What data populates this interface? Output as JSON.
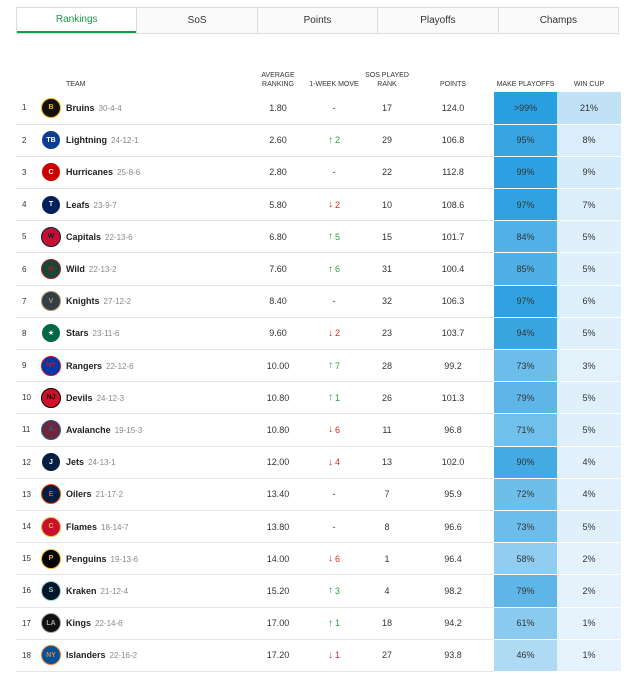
{
  "tabs": [
    {
      "label": "Rankings",
      "active": true
    },
    {
      "label": "SoS",
      "active": false
    },
    {
      "label": "Points",
      "active": false
    },
    {
      "label": "Playoffs",
      "active": false
    },
    {
      "label": "Champs",
      "active": false
    }
  ],
  "columns": {
    "team": "TEAM",
    "avg_ranking": "AVERAGE RANKING",
    "move": "1-WEEK MOVE",
    "sos": "SOS PLAYED RANK",
    "points": "POINTS",
    "playoffs": "MAKE PLAYOFFS",
    "cup": "WIN CUP"
  },
  "teams": [
    {
      "rank": "1",
      "name": "Bruins",
      "record": "30-4-4",
      "avg": "1.80",
      "move": "-",
      "dir": "none",
      "sos": "17",
      "points": "124.0",
      "playoffs": ">99%",
      "cup": "21%",
      "playoffs_pct": 99.5,
      "cup_pct": 21,
      "logo_color": "#111111",
      "logo_accent": "#f5b700",
      "abbr": "B"
    },
    {
      "rank": "2",
      "name": "Lightning",
      "record": "24-12-1",
      "avg": "2.60",
      "move": "2",
      "dir": "up",
      "sos": "29",
      "points": "106.8",
      "playoffs": "95%",
      "cup": "8%",
      "playoffs_pct": 95,
      "cup_pct": 8,
      "logo_color": "#0b3d91",
      "logo_accent": "#ffffff",
      "abbr": "TB"
    },
    {
      "rank": "3",
      "name": "Hurricanes",
      "record": "25-8-6",
      "avg": "2.80",
      "move": "-",
      "dir": "none",
      "sos": "22",
      "points": "112.8",
      "playoffs": "99%",
      "cup": "9%",
      "playoffs_pct": 99,
      "cup_pct": 9,
      "logo_color": "#cc0000",
      "logo_accent": "#ffffff",
      "abbr": "C"
    },
    {
      "rank": "4",
      "name": "Leafs",
      "record": "23-9-7",
      "avg": "5.80",
      "move": "2",
      "dir": "down",
      "sos": "10",
      "points": "108.6",
      "playoffs": "97%",
      "cup": "7%",
      "playoffs_pct": 97,
      "cup_pct": 7,
      "logo_color": "#00205b",
      "logo_accent": "#ffffff",
      "abbr": "T"
    },
    {
      "rank": "5",
      "name": "Capitals",
      "record": "22-13-6",
      "avg": "6.80",
      "move": "5",
      "dir": "up",
      "sos": "15",
      "points": "101.7",
      "playoffs": "84%",
      "cup": "5%",
      "playoffs_pct": 84,
      "cup_pct": 5,
      "logo_color": "#c8102e",
      "logo_accent": "#041e42",
      "abbr": "W"
    },
    {
      "rank": "6",
      "name": "Wild",
      "record": "22-13-2",
      "avg": "7.60",
      "move": "6",
      "dir": "up",
      "sos": "31",
      "points": "100.4",
      "playoffs": "85%",
      "cup": "5%",
      "playoffs_pct": 85,
      "cup_pct": 5,
      "logo_color": "#154734",
      "logo_accent": "#a6192e",
      "abbr": "M"
    },
    {
      "rank": "7",
      "name": "Knights",
      "record": "27-12-2",
      "avg": "8.40",
      "move": "-",
      "dir": "none",
      "sos": "32",
      "points": "106.3",
      "playoffs": "97%",
      "cup": "6%",
      "playoffs_pct": 97,
      "cup_pct": 6,
      "logo_color": "#333f48",
      "logo_accent": "#b4975a",
      "abbr": "V"
    },
    {
      "rank": "8",
      "name": "Stars",
      "record": "23-11-6",
      "avg": "9.60",
      "move": "2",
      "dir": "down",
      "sos": "23",
      "points": "103.7",
      "playoffs": "94%",
      "cup": "5%",
      "playoffs_pct": 94,
      "cup_pct": 5,
      "logo_color": "#006847",
      "logo_accent": "#ffffff",
      "abbr": "★"
    },
    {
      "rank": "9",
      "name": "Rangers",
      "record": "22-12-6",
      "avg": "10.00",
      "move": "7",
      "dir": "up",
      "sos": "28",
      "points": "99.2",
      "playoffs": "73%",
      "cup": "3%",
      "playoffs_pct": 73,
      "cup_pct": 3,
      "logo_color": "#0038a8",
      "logo_accent": "#ce1126",
      "abbr": "NY"
    },
    {
      "rank": "10",
      "name": "Devils",
      "record": "24-12-3",
      "avg": "10.80",
      "move": "1",
      "dir": "up",
      "sos": "26",
      "points": "101.3",
      "playoffs": "79%",
      "cup": "5%",
      "playoffs_pct": 79,
      "cup_pct": 5,
      "logo_color": "#ce1126",
      "logo_accent": "#000000",
      "abbr": "NJ"
    },
    {
      "rank": "11",
      "name": "Avalanche",
      "record": "19-15-3",
      "avg": "10.80",
      "move": "6",
      "dir": "down",
      "sos": "11",
      "points": "96.8",
      "playoffs": "71%",
      "cup": "5%",
      "playoffs_pct": 71,
      "cup_pct": 5,
      "logo_color": "#6f263d",
      "logo_accent": "#236192",
      "abbr": "A"
    },
    {
      "rank": "12",
      "name": "Jets",
      "record": "24-13-1",
      "avg": "12.00",
      "move": "4",
      "dir": "down",
      "sos": "13",
      "points": "102.0",
      "playoffs": "90%",
      "cup": "4%",
      "playoffs_pct": 90,
      "cup_pct": 4,
      "logo_color": "#041e42",
      "logo_accent": "#ffffff",
      "abbr": "J"
    },
    {
      "rank": "13",
      "name": "Oilers",
      "record": "21-17-2",
      "avg": "13.40",
      "move": "-",
      "dir": "none",
      "sos": "7",
      "points": "95.9",
      "playoffs": "72%",
      "cup": "4%",
      "playoffs_pct": 72,
      "cup_pct": 4,
      "logo_color": "#041e42",
      "logo_accent": "#fc4c02",
      "abbr": "E"
    },
    {
      "rank": "14",
      "name": "Flames",
      "record": "18-14-7",
      "avg": "13.80",
      "move": "-",
      "dir": "none",
      "sos": "8",
      "points": "96.6",
      "playoffs": "73%",
      "cup": "5%",
      "playoffs_pct": 73,
      "cup_pct": 5,
      "logo_color": "#c8102e",
      "logo_accent": "#f1be48",
      "abbr": "C"
    },
    {
      "rank": "15",
      "name": "Penguins",
      "record": "19-13-6",
      "avg": "14.00",
      "move": "6",
      "dir": "down",
      "sos": "1",
      "points": "96.4",
      "playoffs": "58%",
      "cup": "2%",
      "playoffs_pct": 58,
      "cup_pct": 2,
      "logo_color": "#000000",
      "logo_accent": "#fcb514",
      "abbr": "P"
    },
    {
      "rank": "16",
      "name": "Kraken",
      "record": "21-12-4",
      "avg": "15.20",
      "move": "3",
      "dir": "up",
      "sos": "4",
      "points": "98.2",
      "playoffs": "79%",
      "cup": "2%",
      "playoffs_pct": 79,
      "cup_pct": 2,
      "logo_color": "#001628",
      "logo_accent": "#99d9d9",
      "abbr": "S"
    },
    {
      "rank": "17",
      "name": "Kings",
      "record": "22-14-6",
      "avg": "17.00",
      "move": "1",
      "dir": "up",
      "sos": "18",
      "points": "94.2",
      "playoffs": "61%",
      "cup": "1%",
      "playoffs_pct": 61,
      "cup_pct": 1,
      "logo_color": "#111111",
      "logo_accent": "#a2aaad",
      "abbr": "LA"
    },
    {
      "rank": "18",
      "name": "Islanders",
      "record": "22-16-2",
      "avg": "17.20",
      "move": "1",
      "dir": "down",
      "sos": "27",
      "points": "93.8",
      "playoffs": "46%",
      "cup": "1%",
      "playoffs_pct": 46,
      "cup_pct": 1,
      "logo_color": "#00539b",
      "logo_accent": "#f47d30",
      "abbr": "NY"
    }
  ],
  "colors": {
    "accent": "#1a9a4a",
    "up": "#2e9b45",
    "down": "#d62b2b"
  }
}
